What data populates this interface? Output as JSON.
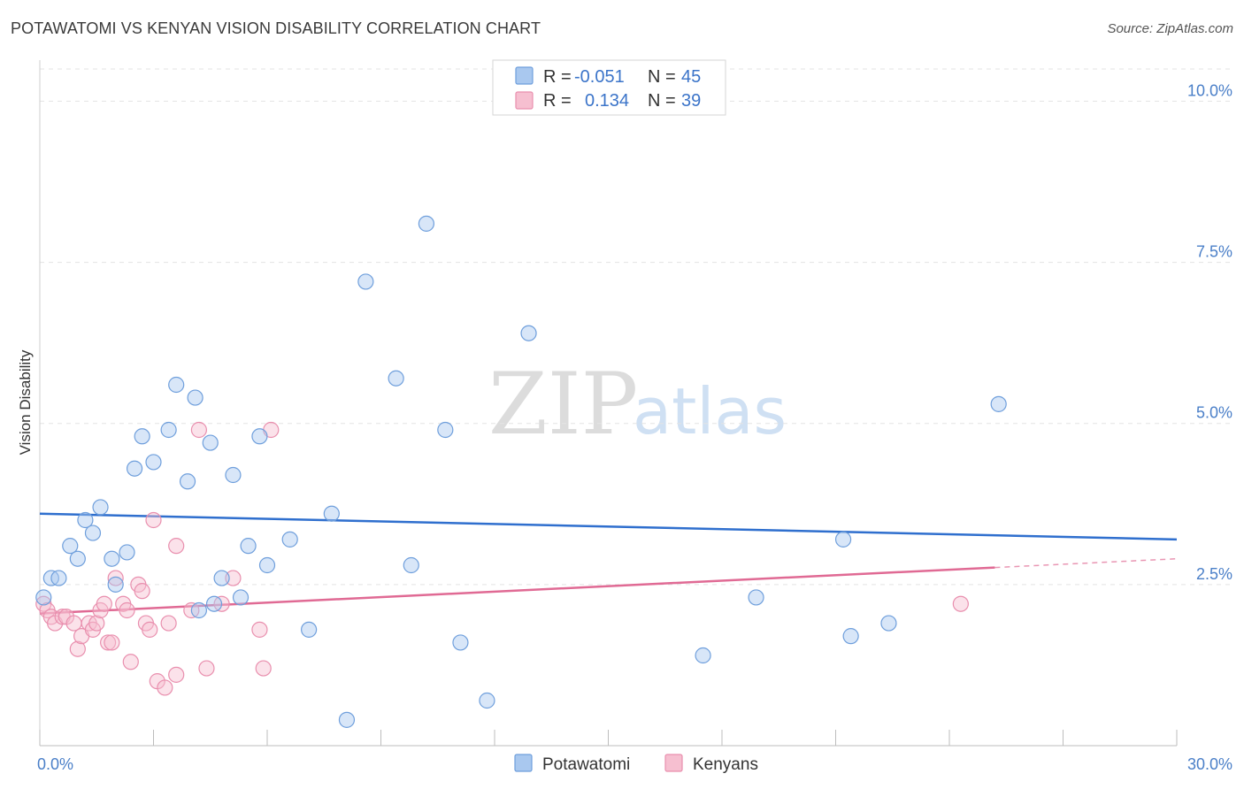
{
  "header": {
    "title": "POTAWATOMI VS KENYAN VISION DISABILITY CORRELATION CHART",
    "source": "Source: ZipAtlas.com"
  },
  "watermark": {
    "part1": "ZIP",
    "part2": "atlas"
  },
  "colors": {
    "potawatomi_fill": "#a9c8ef",
    "potawatomi_stroke": "#6f9fdc",
    "potawatomi_line": "#2f6fce",
    "kenyans_fill": "#f6bfd0",
    "kenyans_stroke": "#e98fae",
    "kenyans_line": "#e06a94",
    "tick_label": "#4a7fc8",
    "grid": "#e3e3e3"
  },
  "legend": {
    "rows": [
      {
        "r_label": "R =",
        "r_value": "-0.051",
        "n_label": "N =",
        "n_value": "45"
      },
      {
        "r_label": "R =",
        "r_value": "0.134",
        "n_label": "N =",
        "n_value": "39"
      }
    ]
  },
  "chart_data": {
    "type": "scatter",
    "title": "POTAWATOMI VS KENYAN VISION DISABILITY CORRELATION CHART",
    "xlabel": "",
    "ylabel": "Vision Disability",
    "xlim": [
      0,
      30
    ],
    "ylim": [
      0,
      10.5
    ],
    "x_tick_labels": {
      "min": "0.0%",
      "max": "30.0%"
    },
    "y_ticks": [
      {
        "value": 2.5,
        "label": "2.5%"
      },
      {
        "value": 5.0,
        "label": "5.0%"
      },
      {
        "value": 7.5,
        "label": "7.5%"
      },
      {
        "value": 10.0,
        "label": "10.0%"
      }
    ],
    "grid": true,
    "legend_position": "top-center",
    "series": [
      {
        "name": "Potawatomi",
        "r": -0.051,
        "n": 45,
        "trend": {
          "x0": 0,
          "y0": 3.6,
          "x1": 30,
          "y1": 3.2,
          "solid_until": 30
        },
        "points": [
          {
            "x": 0.1,
            "y": 2.3
          },
          {
            "x": 0.3,
            "y": 2.6
          },
          {
            "x": 0.5,
            "y": 2.6
          },
          {
            "x": 0.8,
            "y": 3.1
          },
          {
            "x": 1.0,
            "y": 2.9
          },
          {
            "x": 1.2,
            "y": 3.5
          },
          {
            "x": 1.4,
            "y": 3.3
          },
          {
            "x": 1.6,
            "y": 3.7
          },
          {
            "x": 1.9,
            "y": 2.9
          },
          {
            "x": 2.0,
            "y": 2.5
          },
          {
            "x": 2.3,
            "y": 3.0
          },
          {
            "x": 2.5,
            "y": 4.3
          },
          {
            "x": 2.7,
            "y": 4.8
          },
          {
            "x": 3.0,
            "y": 4.4
          },
          {
            "x": 3.4,
            "y": 4.9
          },
          {
            "x": 3.6,
            "y": 5.6
          },
          {
            "x": 3.9,
            "y": 4.1
          },
          {
            "x": 4.1,
            "y": 5.4
          },
          {
            "x": 4.2,
            "y": 2.1
          },
          {
            "x": 4.5,
            "y": 4.7
          },
          {
            "x": 4.6,
            "y": 2.2
          },
          {
            "x": 4.8,
            "y": 2.6
          },
          {
            "x": 5.1,
            "y": 4.2
          },
          {
            "x": 5.3,
            "y": 2.3
          },
          {
            "x": 5.5,
            "y": 3.1
          },
          {
            "x": 5.8,
            "y": 4.8
          },
          {
            "x": 6.0,
            "y": 2.8
          },
          {
            "x": 6.6,
            "y": 3.2
          },
          {
            "x": 7.1,
            "y": 1.8
          },
          {
            "x": 7.7,
            "y": 3.6
          },
          {
            "x": 8.1,
            "y": 0.4
          },
          {
            "x": 8.6,
            "y": 7.2
          },
          {
            "x": 9.4,
            "y": 5.7
          },
          {
            "x": 9.8,
            "y": 2.8
          },
          {
            "x": 10.2,
            "y": 8.1
          },
          {
            "x": 10.7,
            "y": 4.9
          },
          {
            "x": 11.1,
            "y": 1.6
          },
          {
            "x": 11.8,
            "y": 0.7
          },
          {
            "x": 12.9,
            "y": 6.4
          },
          {
            "x": 17.5,
            "y": 1.4
          },
          {
            "x": 18.9,
            "y": 2.3
          },
          {
            "x": 21.2,
            "y": 3.2
          },
          {
            "x": 21.4,
            "y": 1.7
          },
          {
            "x": 22.4,
            "y": 1.9
          },
          {
            "x": 25.3,
            "y": 5.3
          }
        ]
      },
      {
        "name": "Kenyans",
        "r": 0.134,
        "n": 39,
        "trend": {
          "x0": 0,
          "y0": 2.05,
          "x1": 30,
          "y1": 2.9,
          "solid_until": 25.2
        },
        "points": [
          {
            "x": 0.1,
            "y": 2.2
          },
          {
            "x": 0.2,
            "y": 2.1
          },
          {
            "x": 0.3,
            "y": 2.0
          },
          {
            "x": 0.4,
            "y": 1.9
          },
          {
            "x": 0.6,
            "y": 2.0
          },
          {
            "x": 0.7,
            "y": 2.0
          },
          {
            "x": 0.9,
            "y": 1.9
          },
          {
            "x": 1.0,
            "y": 1.5
          },
          {
            "x": 1.1,
            "y": 1.7
          },
          {
            "x": 1.3,
            "y": 1.9
          },
          {
            "x": 1.4,
            "y": 1.8
          },
          {
            "x": 1.5,
            "y": 1.9
          },
          {
            "x": 1.6,
            "y": 2.1
          },
          {
            "x": 1.7,
            "y": 2.2
          },
          {
            "x": 1.8,
            "y": 1.6
          },
          {
            "x": 1.9,
            "y": 1.6
          },
          {
            "x": 2.0,
            "y": 2.6
          },
          {
            "x": 2.2,
            "y": 2.2
          },
          {
            "x": 2.3,
            "y": 2.1
          },
          {
            "x": 2.4,
            "y": 1.3
          },
          {
            "x": 2.6,
            "y": 2.5
          },
          {
            "x": 2.7,
            "y": 2.4
          },
          {
            "x": 2.8,
            "y": 1.9
          },
          {
            "x": 2.9,
            "y": 1.8
          },
          {
            "x": 3.0,
            "y": 3.5
          },
          {
            "x": 3.1,
            "y": 1.0
          },
          {
            "x": 3.3,
            "y": 0.9
          },
          {
            "x": 3.4,
            "y": 1.9
          },
          {
            "x": 3.6,
            "y": 3.1
          },
          {
            "x": 3.6,
            "y": 1.1
          },
          {
            "x": 4.0,
            "y": 2.1
          },
          {
            "x": 4.2,
            "y": 4.9
          },
          {
            "x": 4.4,
            "y": 1.2
          },
          {
            "x": 4.8,
            "y": 2.2
          },
          {
            "x": 5.1,
            "y": 2.6
          },
          {
            "x": 5.8,
            "y": 1.8
          },
          {
            "x": 5.9,
            "y": 1.2
          },
          {
            "x": 6.1,
            "y": 4.9
          },
          {
            "x": 24.3,
            "y": 2.2
          }
        ]
      }
    ]
  },
  "bottom_legend": {
    "items": [
      {
        "label": "Potawatomi"
      },
      {
        "label": "Kenyans"
      }
    ]
  }
}
